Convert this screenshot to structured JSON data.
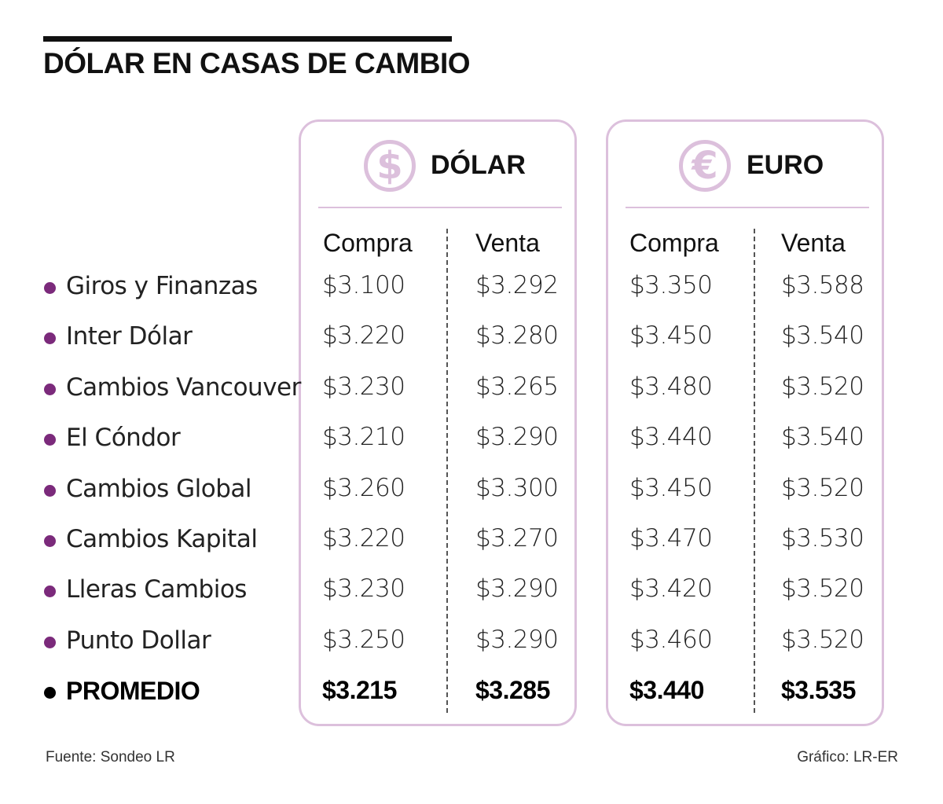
{
  "title": "DÓLAR EN CASAS DE CAMBIO",
  "panels": [
    {
      "title": "DÓLAR",
      "icon": "dollar-circle-icon",
      "symbol": "$",
      "compra_label": "Compra",
      "venta_label": "Venta"
    },
    {
      "title": "EURO",
      "icon": "euro-circle-icon",
      "symbol": "€",
      "compra_label": "Compra",
      "venta_label": "Venta"
    }
  ],
  "rows": [
    {
      "name": "Giros y Finanzas",
      "usd_compra": "$3.100",
      "usd_venta": "$3.292",
      "eur_compra": "$3.350",
      "eur_venta": "$3.588"
    },
    {
      "name": "Inter Dólar",
      "usd_compra": "$3.220",
      "usd_venta": "$3.280",
      "eur_compra": "$3.450",
      "eur_venta": "$3.540"
    },
    {
      "name": "Cambios Vancouver",
      "usd_compra": "$3.230",
      "usd_venta": "$3.265",
      "eur_compra": "$3.480",
      "eur_venta": "$3.520"
    },
    {
      "name": "El Cóndor",
      "usd_compra": "$3.210",
      "usd_venta": "$3.290",
      "eur_compra": "$3.440",
      "eur_venta": "$3.540"
    },
    {
      "name": "Cambios Global",
      "usd_compra": "$3.260",
      "usd_venta": "$3.300",
      "eur_compra": "$3.450",
      "eur_venta": "$3.520"
    },
    {
      "name": "Cambios Kapital",
      "usd_compra": "$3.220",
      "usd_venta": "$3.270",
      "eur_compra": "$3.470",
      "eur_venta": "$3.530"
    },
    {
      "name": "Lleras Cambios",
      "usd_compra": "$3.230",
      "usd_venta": "$3.290",
      "eur_compra": "$3.420",
      "eur_venta": "$3.520"
    },
    {
      "name": "Punto Dollar",
      "usd_compra": "$3.250",
      "usd_venta": "$3.290",
      "eur_compra": "$3.460",
      "eur_venta": "$3.520"
    },
    {
      "name": "PROMEDIO",
      "usd_compra": "$3.215",
      "usd_venta": "$3.285",
      "eur_compra": "$3.440",
      "eur_venta": "$3.535",
      "bold": true
    }
  ],
  "colors": {
    "accent": "#dcc0dc",
    "bullet": "#7b2a7b"
  },
  "footer": {
    "source": "Fuente: Sondeo LR",
    "credit": "Gráfico: LR-ER"
  }
}
